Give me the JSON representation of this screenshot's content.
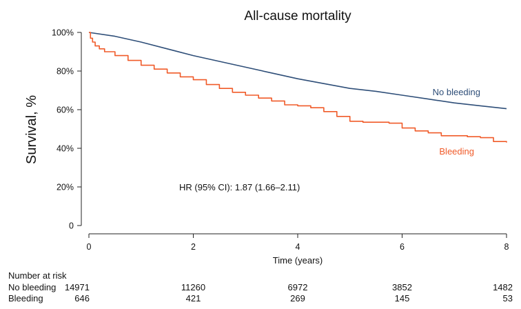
{
  "chart_data": {
    "type": "line",
    "subtype": "kaplan-meier",
    "title": "All-cause mortality",
    "xlabel": "Time (years)",
    "ylabel": "Survival, %",
    "xlim": [
      0,
      8
    ],
    "ylim": [
      0,
      100
    ],
    "xticks": [
      0,
      2,
      4,
      6,
      8
    ],
    "xtick_labels": [
      "0",
      "2",
      "4",
      "6",
      "8"
    ],
    "yticks": [
      0,
      20,
      40,
      60,
      80,
      100
    ],
    "ytick_labels": [
      "0",
      "20%",
      "40%",
      "60%",
      "80%",
      "100%"
    ],
    "grid": false,
    "annotation": "HR (95% CI): 1.87 (1.66–2.11)",
    "series": [
      {
        "name": "No bleeding",
        "color": "#2e4e78",
        "x": [
          0,
          0.5,
          1,
          1.5,
          2,
          2.5,
          3,
          3.5,
          4,
          4.5,
          5,
          5.5,
          6,
          6.5,
          7,
          7.5,
          8
        ],
        "y": [
          100,
          98,
          95,
          91.5,
          88,
          85,
          82,
          79,
          76,
          73.5,
          71,
          69.5,
          67.5,
          65.5,
          63.5,
          62,
          60.5
        ]
      },
      {
        "name": "Bleeding",
        "color": "#f05a28",
        "x": [
          0,
          0.03,
          0.07,
          0.12,
          0.2,
          0.3,
          0.5,
          0.75,
          1,
          1.25,
          1.5,
          1.75,
          2,
          2.25,
          2.5,
          2.75,
          3,
          3.25,
          3.5,
          3.75,
          4,
          4.25,
          4.5,
          4.75,
          5,
          5.25,
          5.5,
          5.75,
          6,
          6.25,
          6.5,
          6.75,
          7,
          7.25,
          7.5,
          7.75,
          8
        ],
        "y": [
          100,
          97,
          95,
          93,
          91.5,
          90,
          88,
          85.5,
          83,
          81,
          79,
          77,
          75.5,
          73,
          71,
          69,
          67.5,
          66,
          64.5,
          62.5,
          62,
          61,
          59,
          56.5,
          54,
          53.5,
          53.5,
          53,
          50.5,
          49,
          48,
          46.5,
          46.5,
          46,
          45.5,
          43.5,
          43
        ]
      }
    ],
    "risk_table": {
      "header": "Number at risk",
      "times": [
        0,
        2,
        4,
        6,
        8
      ],
      "rows": [
        {
          "label": "No bleeding",
          "values": [
            "14971",
            "11260",
            "6972",
            "3852",
            "1482"
          ]
        },
        {
          "label": "Bleeding",
          "values": [
            "646",
            "421",
            "269",
            "145",
            "53"
          ]
        }
      ]
    }
  }
}
